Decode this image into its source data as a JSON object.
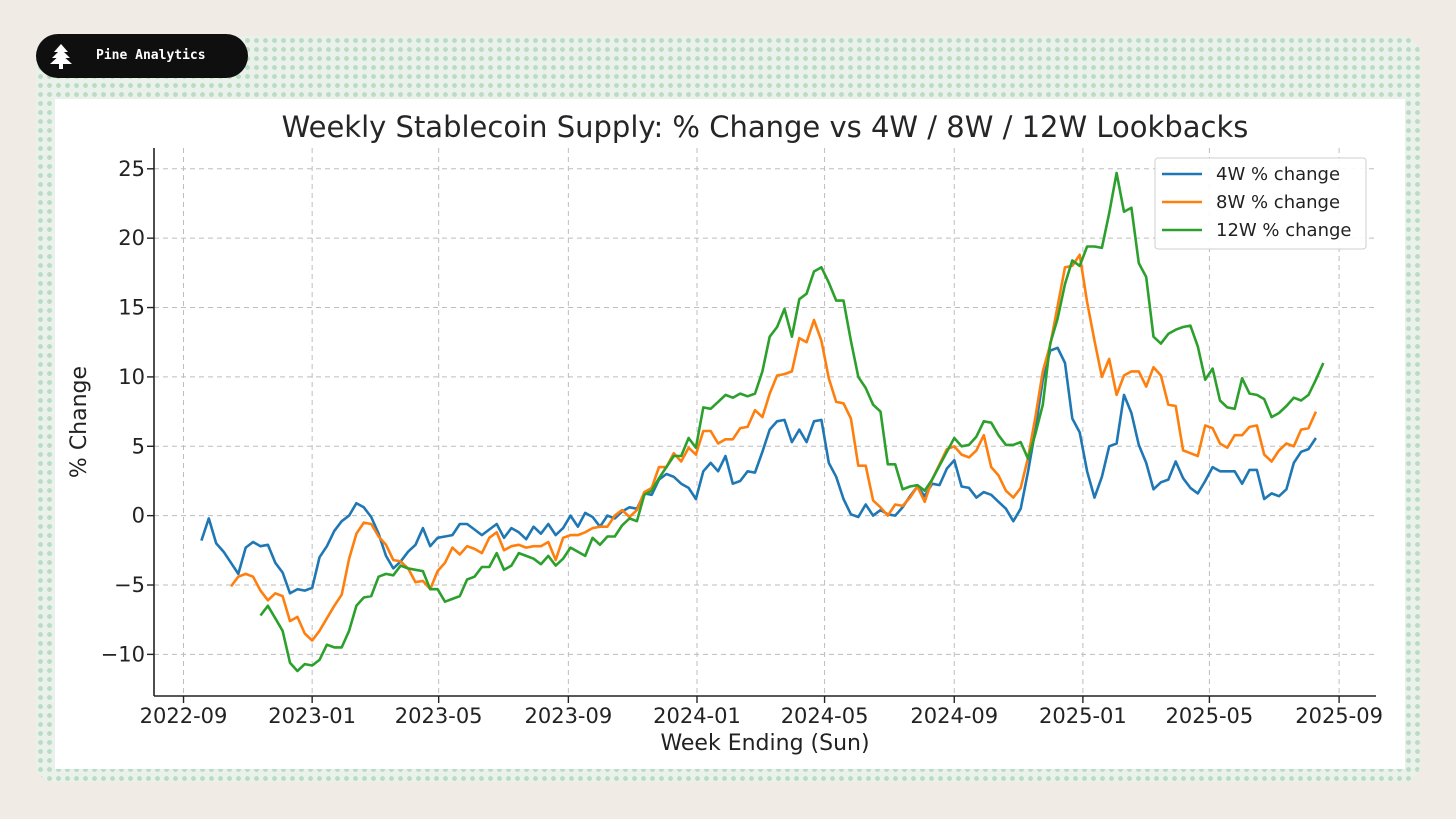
{
  "brand": {
    "name": "Pine Analytics",
    "icon": "pine-tree-icon"
  },
  "colors": {
    "series1": "#1f77b4",
    "series2": "#ff7f0e",
    "series3": "#2ca02c",
    "background": "#f0ebe5",
    "badge": "#0f0f0f"
  },
  "chart_data": {
    "type": "line",
    "title": "Weekly Stablecoin Supply: % Change vs 4W / 8W / 12W Lookbacks",
    "xlabel": "Week Ending (Sun)",
    "ylabel": "% Change",
    "ylim": [
      -13,
      26.5
    ],
    "xlim": [
      "2022-08-04",
      "2025-10-06"
    ],
    "grid": true,
    "legend_position": "top-right",
    "x_ticks": [
      "2022-09",
      "2023-01",
      "2023-05",
      "2023-09",
      "2024-01",
      "2024-05",
      "2024-09",
      "2025-01",
      "2025-05",
      "2025-09"
    ],
    "y_ticks": [
      -10,
      -5,
      0,
      5,
      10,
      15,
      20,
      25
    ],
    "x_tick_labels": [
      "2022-09",
      "2023-01",
      "2023-05",
      "2023-09",
      "2024-01",
      "2024-05",
      "2024-09",
      "2025-01",
      "2025-05",
      "2025-09"
    ],
    "y_tick_labels": [
      "−10",
      "−5",
      "0",
      "5",
      "10",
      "15",
      "20",
      "25"
    ],
    "first_week": "2022-09-18",
    "week_step_days": 7,
    "series": [
      {
        "name": "4W % change",
        "start_index": 0,
        "values": [
          -1.8,
          -0.2,
          -2.0,
          -2.6,
          -3.4,
          -4.2,
          -2.3,
          -1.9,
          -2.2,
          -2.1,
          -3.4,
          -4.1,
          -5.6,
          -5.3,
          -5.4,
          -5.2,
          -3.0,
          -2.2,
          -1.1,
          -0.4,
          0.0,
          0.9,
          0.6,
          -0.1,
          -1.3,
          -2.9,
          -3.8,
          -3.3,
          -2.6,
          -2.1,
          -0.9,
          -2.2,
          -1.6,
          -1.5,
          -1.4,
          -0.6,
          -0.6,
          -1.0,
          -1.4,
          -1.0,
          -0.6,
          -1.6,
          -0.9,
          -1.2,
          -1.7,
          -0.8,
          -1.3,
          -0.6,
          -1.4,
          -0.9,
          0.0,
          -0.8,
          0.2,
          -0.1,
          -0.8,
          0.0,
          -0.2,
          0.3,
          0.6,
          0.5,
          1.6,
          1.5,
          2.6,
          3.0,
          2.8,
          2.3,
          2.0,
          1.2,
          3.2,
          3.8,
          3.2,
          4.3,
          2.3,
          2.5,
          3.2,
          3.1,
          4.6,
          6.2,
          6.8,
          6.9,
          5.3,
          6.2,
          5.3,
          6.8,
          6.9,
          3.8,
          2.8,
          1.2,
          0.1,
          -0.1,
          0.8,
          0.0,
          0.4,
          0.1,
          0.0,
          0.6,
          1.4,
          2.1,
          1.4,
          2.3,
          2.2,
          3.4,
          4.0,
          2.1,
          2.0,
          1.3,
          1.7,
          1.5,
          1.0,
          0.5,
          -0.4,
          0.5,
          3.2,
          6.2,
          9.8,
          11.9,
          12.1,
          11.0,
          7.0,
          6.0,
          3.2,
          1.3,
          2.8,
          5.0,
          5.2,
          8.7,
          7.4,
          5.1,
          3.8,
          1.9,
          2.4,
          2.6,
          3.9,
          2.7,
          2.0,
          1.6,
          2.5,
          3.5,
          3.2,
          3.2,
          3.2,
          2.3,
          3.3,
          3.3,
          1.2,
          1.6,
          1.4,
          1.9,
          3.8,
          4.6,
          4.8,
          5.6
        ]
      },
      {
        "name": "8W % change",
        "start_index": 4,
        "values": [
          -5.1,
          -4.4,
          -4.2,
          -4.4,
          -5.4,
          -6.1,
          -5.6,
          -5.8,
          -7.6,
          -7.3,
          -8.5,
          -9.0,
          -8.3,
          -7.4,
          -6.5,
          -5.7,
          -3.1,
          -1.3,
          -0.5,
          -0.6,
          -1.5,
          -2.1,
          -3.2,
          -3.3,
          -3.8,
          -4.8,
          -4.7,
          -5.3,
          -4.0,
          -3.4,
          -2.3,
          -2.8,
          -2.2,
          -2.4,
          -2.7,
          -1.6,
          -1.2,
          -2.5,
          -2.2,
          -2.1,
          -2.3,
          -2.2,
          -2.2,
          -1.9,
          -3.2,
          -1.6,
          -1.4,
          -1.4,
          -1.2,
          -0.9,
          -0.8,
          -0.8,
          0.0,
          0.4,
          -0.1,
          0.4,
          1.7,
          2.0,
          3.5,
          3.5,
          4.5,
          3.9,
          4.9,
          4.4,
          6.1,
          6.1,
          5.2,
          5.5,
          5.5,
          6.3,
          6.4,
          7.6,
          7.1,
          8.8,
          10.1,
          10.2,
          10.4,
          12.8,
          12.5,
          14.1,
          12.6,
          9.9,
          8.2,
          8.1,
          7.0,
          3.6,
          3.6,
          1.1,
          0.6,
          0.0,
          0.8,
          0.7,
          1.3,
          2.1,
          1.0,
          2.6,
          3.7,
          4.8,
          5.0,
          4.4,
          4.2,
          4.7,
          5.8,
          3.5,
          2.9,
          1.8,
          1.3,
          2.0,
          4.2,
          7.1,
          10.4,
          12.3,
          15.1,
          17.9,
          18.0,
          18.8,
          15.4,
          12.6,
          10.0,
          11.3,
          8.7,
          10.1,
          10.4,
          10.4,
          9.3,
          10.7,
          10.1,
          8.0,
          7.9,
          4.7,
          4.5,
          4.3,
          6.5,
          6.3,
          5.2,
          4.9,
          5.8,
          5.8,
          6.4,
          6.5,
          4.4,
          3.9,
          4.7,
          5.2,
          5.0,
          6.2,
          6.3,
          7.5
        ]
      },
      {
        "name": "12W % change",
        "start_index": 8,
        "values": [
          -7.2,
          -6.5,
          -7.4,
          -8.3,
          -10.6,
          -11.2,
          -10.7,
          -10.8,
          -10.4,
          -9.3,
          -9.5,
          -9.5,
          -8.3,
          -6.5,
          -5.9,
          -5.8,
          -4.4,
          -4.2,
          -4.3,
          -3.6,
          -3.8,
          -3.9,
          -4.0,
          -5.3,
          -5.3,
          -6.2,
          -6.0,
          -5.8,
          -4.6,
          -4.4,
          -3.7,
          -3.7,
          -2.7,
          -3.9,
          -3.6,
          -2.7,
          -2.9,
          -3.1,
          -3.5,
          -2.9,
          -3.6,
          -3.1,
          -2.3,
          -2.6,
          -2.9,
          -1.6,
          -2.1,
          -1.5,
          -1.5,
          -0.7,
          -0.2,
          -0.4,
          1.5,
          1.8,
          2.7,
          3.5,
          4.3,
          4.3,
          5.6,
          4.9,
          7.8,
          7.7,
          8.2,
          8.7,
          8.5,
          8.8,
          8.6,
          8.8,
          10.4,
          12.9,
          13.6,
          14.9,
          12.9,
          15.6,
          16.0,
          17.6,
          17.9,
          16.8,
          15.5,
          15.5,
          12.6,
          10.0,
          9.2,
          8.0,
          7.5,
          3.7,
          3.7,
          1.9,
          2.1,
          2.2,
          1.8,
          2.6,
          3.6,
          4.6,
          5.6,
          5.0,
          5.1,
          5.7,
          6.8,
          6.7,
          5.8,
          5.1,
          5.1,
          5.3,
          4.1,
          5.9,
          8.0,
          12.4,
          14.2,
          16.7,
          18.4,
          18.0,
          19.4,
          19.4,
          19.3,
          21.8,
          24.7,
          21.9,
          22.2,
          18.2,
          17.2,
          12.9,
          12.4,
          13.1,
          13.4,
          13.6,
          13.7,
          12.2,
          9.8,
          10.6,
          8.3,
          7.8,
          7.7,
          9.9,
          8.8,
          8.7,
          8.4,
          7.1,
          7.4,
          7.9,
          8.5,
          8.3,
          8.7,
          9.8,
          11.0
        ]
      }
    ]
  }
}
